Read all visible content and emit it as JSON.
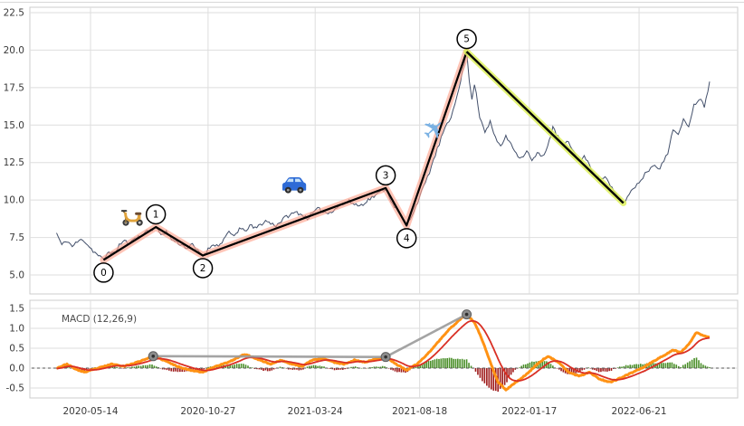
{
  "chart_data": {
    "type": "line",
    "title": "",
    "x_axis": {
      "range_years": [
        2020.135,
        2022.85
      ],
      "ticks": [
        {
          "label": "2020-05-14",
          "year": 2020.37
        },
        {
          "label": "2020-10-27",
          "year": 2020.82
        },
        {
          "label": "2021-03-24",
          "year": 2021.23
        },
        {
          "label": "2021-08-18",
          "year": 2021.63
        },
        {
          "label": "2022-01-17",
          "year": 2022.05
        },
        {
          "label": "2022-06-21",
          "year": 2022.47
        }
      ]
    },
    "panels": [
      {
        "name": "price",
        "ylim": [
          3.7,
          22.9
        ],
        "yticks": [
          5.0,
          7.5,
          10.0,
          12.5,
          15.0,
          17.5,
          20.0,
          22.5
        ],
        "grid": true,
        "series": [
          {
            "name": "close",
            "color": "#43506b",
            "points": [
              [
                2020.24,
                7.8
              ],
              [
                2020.26,
                7.0
              ],
              [
                2020.28,
                7.3
              ],
              [
                2020.3,
                6.9
              ],
              [
                2020.32,
                7.2
              ],
              [
                2020.34,
                7.4
              ],
              [
                2020.36,
                7.0
              ],
              [
                2020.38,
                6.6
              ],
              [
                2020.4,
                6.3
              ],
              [
                2020.42,
                6.0
              ],
              [
                2020.44,
                6.6
              ],
              [
                2020.46,
                6.4
              ],
              [
                2020.48,
                7.0
              ],
              [
                2020.5,
                7.3
              ],
              [
                2020.52,
                7.0
              ],
              [
                2020.54,
                7.6
              ],
              [
                2020.56,
                7.5
              ],
              [
                2020.58,
                7.9
              ],
              [
                2020.6,
                8.0
              ],
              [
                2020.62,
                8.2
              ],
              [
                2020.64,
                7.7
              ],
              [
                2020.66,
                7.9
              ],
              [
                2020.68,
                7.4
              ],
              [
                2020.7,
                7.2
              ],
              [
                2020.72,
                7.0
              ],
              [
                2020.74,
                6.8
              ],
              [
                2020.76,
                7.0
              ],
              [
                2020.78,
                6.6
              ],
              [
                2020.8,
                6.3
              ],
              [
                2020.82,
                6.7
              ],
              [
                2020.84,
                7.1
              ],
              [
                2020.86,
                6.9
              ],
              [
                2020.88,
                7.4
              ],
              [
                2020.9,
                7.8
              ],
              [
                2020.92,
                7.6
              ],
              [
                2020.94,
                8.1
              ],
              [
                2020.96,
                7.9
              ],
              [
                2020.98,
                8.3
              ],
              [
                2021.0,
                8.1
              ],
              [
                2021.04,
                8.6
              ],
              [
                2021.08,
                8.3
              ],
              [
                2021.12,
                8.9
              ],
              [
                2021.16,
                9.2
              ],
              [
                2021.2,
                8.8
              ],
              [
                2021.24,
                9.4
              ],
              [
                2021.28,
                9.1
              ],
              [
                2021.32,
                9.6
              ],
              [
                2021.36,
                9.9
              ],
              [
                2021.4,
                9.6
              ],
              [
                2021.44,
                10.1
              ],
              [
                2021.47,
                10.4
              ],
              [
                2021.5,
                10.8
              ],
              [
                2021.52,
                10.0
              ],
              [
                2021.54,
                9.4
              ],
              [
                2021.56,
                8.9
              ],
              [
                2021.58,
                8.3
              ],
              [
                2021.6,
                9.0
              ],
              [
                2021.63,
                10.2
              ],
              [
                2021.66,
                11.5
              ],
              [
                2021.69,
                13.0
              ],
              [
                2021.72,
                14.5
              ],
              [
                2021.75,
                15.5
              ],
              [
                2021.78,
                17.5
              ],
              [
                2021.8,
                19.0
              ],
              [
                2021.81,
                19.9
              ],
              [
                2021.82,
                18.0
              ],
              [
                2021.83,
                16.6
              ],
              [
                2021.84,
                17.8
              ],
              [
                2021.86,
                15.6
              ],
              [
                2021.88,
                14.6
              ],
              [
                2021.9,
                15.2
              ],
              [
                2021.92,
                14.1
              ],
              [
                2021.94,
                13.6
              ],
              [
                2021.96,
                14.2
              ],
              [
                2021.98,
                13.8
              ],
              [
                2022.0,
                13.1
              ],
              [
                2022.02,
                12.8
              ],
              [
                2022.04,
                13.3
              ],
              [
                2022.06,
                12.6
              ],
              [
                2022.08,
                13.1
              ],
              [
                2022.1,
                12.9
              ],
              [
                2022.12,
                13.6
              ],
              [
                2022.14,
                14.8
              ],
              [
                2022.16,
                14.2
              ],
              [
                2022.18,
                13.6
              ],
              [
                2022.2,
                13.9
              ],
              [
                2022.22,
                13.2
              ],
              [
                2022.24,
                12.6
              ],
              [
                2022.26,
                12.9
              ],
              [
                2022.28,
                12.3
              ],
              [
                2022.3,
                11.8
              ],
              [
                2022.32,
                11.3
              ],
              [
                2022.34,
                11.6
              ],
              [
                2022.36,
                10.9
              ],
              [
                2022.38,
                10.4
              ],
              [
                2022.41,
                9.8
              ],
              [
                2022.44,
                10.6
              ],
              [
                2022.47,
                11.2
              ],
              [
                2022.5,
                11.9
              ],
              [
                2022.53,
                12.4
              ],
              [
                2022.55,
                12.1
              ],
              [
                2022.58,
                13.1
              ],
              [
                2022.6,
                14.8
              ],
              [
                2022.62,
                14.3
              ],
              [
                2022.64,
                15.3
              ],
              [
                2022.66,
                15.0
              ],
              [
                2022.68,
                16.3
              ],
              [
                2022.7,
                16.8
              ],
              [
                2022.72,
                16.3
              ],
              [
                2022.74,
                17.9
              ]
            ]
          }
        ],
        "elliott_wave": {
          "color": "#000000",
          "glow_color": "#ff9d85",
          "points": [
            {
              "label": "0",
              "year": 2020.42,
              "value": 6.0,
              "circle": "below"
            },
            {
              "label": "1",
              "year": 2020.62,
              "value": 8.2,
              "circle": "above"
            },
            {
              "label": "2",
              "year": 2020.8,
              "value": 6.3,
              "circle": "below"
            },
            {
              "label": "3",
              "year": 2021.5,
              "value": 10.8,
              "circle": "above"
            },
            {
              "label": "4",
              "year": 2021.58,
              "value": 8.3,
              "circle": "below"
            },
            {
              "label": "5",
              "year": 2021.81,
              "value": 19.9,
              "circle": "above"
            }
          ]
        },
        "trendline_after_wave5": {
          "color": "#000000",
          "glow_color": "#dff15e",
          "from": {
            "year": 2021.81,
            "value": 19.9
          },
          "to": {
            "year": 2022.41,
            "value": 9.8
          }
        },
        "icon_markers": [
          {
            "icon": "scooter-icon",
            "symbol": "scooter",
            "year": 2020.53,
            "value": 9.0,
            "size": 27
          },
          {
            "icon": "car-icon",
            "symbol": "car",
            "year": 2021.15,
            "value": 11.1,
            "size": 31
          },
          {
            "icon": "airplane-icon",
            "symbol": "plane",
            "year": 2021.69,
            "value": 14.6,
            "size": 40
          }
        ]
      },
      {
        "name": "macd",
        "label": "MACD (12,26,9)",
        "ylim": [
          -0.75,
          1.7
        ],
        "yticks": [
          -0.5,
          0.0,
          0.5,
          1.0,
          1.5
        ],
        "grid": true,
        "macd_color": "#ff9214",
        "signal_color": "#d93025",
        "hist_up_color": "#4a8f29",
        "hist_down_color": "#9e1a1a",
        "macd_points": [
          [
            2020.24,
            0.0
          ],
          [
            2020.28,
            0.1
          ],
          [
            2020.32,
            -0.05
          ],
          [
            2020.35,
            -0.1
          ],
          [
            2020.4,
            0.0
          ],
          [
            2020.45,
            0.1
          ],
          [
            2020.5,
            0.05
          ],
          [
            2020.55,
            0.15
          ],
          [
            2020.61,
            0.3
          ],
          [
            2020.65,
            0.2
          ],
          [
            2020.7,
            0.05
          ],
          [
            2020.75,
            -0.05
          ],
          [
            2020.8,
            -0.1
          ],
          [
            2020.85,
            0.05
          ],
          [
            2020.9,
            0.15
          ],
          [
            2020.96,
            0.35
          ],
          [
            2021.02,
            0.2
          ],
          [
            2021.06,
            0.1
          ],
          [
            2021.1,
            0.2
          ],
          [
            2021.14,
            0.1
          ],
          [
            2021.18,
            0.05
          ],
          [
            2021.22,
            0.2
          ],
          [
            2021.26,
            0.25
          ],
          [
            2021.3,
            0.15
          ],
          [
            2021.34,
            0.1
          ],
          [
            2021.38,
            0.2
          ],
          [
            2021.42,
            0.15
          ],
          [
            2021.46,
            0.22
          ],
          [
            2021.5,
            0.28
          ],
          [
            2021.54,
            0.1
          ],
          [
            2021.58,
            -0.05
          ],
          [
            2021.62,
            0.1
          ],
          [
            2021.66,
            0.35
          ],
          [
            2021.7,
            0.65
          ],
          [
            2021.74,
            0.95
          ],
          [
            2021.78,
            1.2
          ],
          [
            2021.81,
            1.35
          ],
          [
            2021.84,
            1.15
          ],
          [
            2021.87,
            0.7
          ],
          [
            2021.9,
            0.15
          ],
          [
            2021.93,
            -0.35
          ],
          [
            2021.96,
            -0.55
          ],
          [
            2022.0,
            -0.35
          ],
          [
            2022.04,
            -0.15
          ],
          [
            2022.08,
            0.1
          ],
          [
            2022.12,
            0.3
          ],
          [
            2022.16,
            0.15
          ],
          [
            2022.2,
            -0.1
          ],
          [
            2022.24,
            -0.2
          ],
          [
            2022.28,
            -0.1
          ],
          [
            2022.32,
            -0.28
          ],
          [
            2022.36,
            -0.35
          ],
          [
            2022.4,
            -0.25
          ],
          [
            2022.44,
            -0.12
          ],
          [
            2022.48,
            0.0
          ],
          [
            2022.52,
            0.15
          ],
          [
            2022.56,
            0.3
          ],
          [
            2022.6,
            0.45
          ],
          [
            2022.63,
            0.4
          ],
          [
            2022.66,
            0.6
          ],
          [
            2022.69,
            0.9
          ],
          [
            2022.72,
            0.8
          ],
          [
            2022.74,
            0.78
          ]
        ],
        "divergence": {
          "color": "#9a9a9a",
          "dot_color": "#8c8c8c",
          "points": [
            [
              2020.61,
              0.3
            ],
            [
              2021.5,
              0.28
            ],
            [
              2021.81,
              1.35
            ]
          ]
        }
      }
    ]
  }
}
